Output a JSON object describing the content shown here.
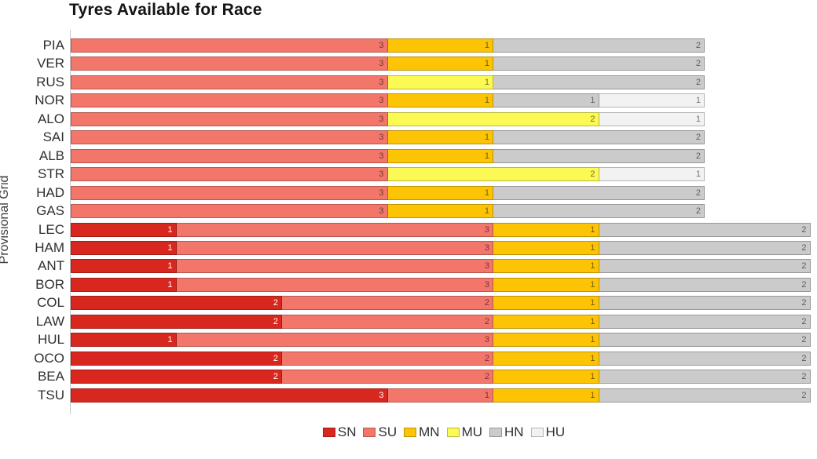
{
  "chart_data": {
    "type": "bar",
    "orientation": "horizontal",
    "stacked": true,
    "title": "Tyres Available for Race",
    "xlabel": "",
    "ylabel": "Provisional Grid",
    "xlim": [
      0,
      7.06
    ],
    "grid": false,
    "legend_position": "bottom-center",
    "legend": [
      "SN",
      "SU",
      "MN",
      "MU",
      "HN",
      "HU"
    ],
    "colors": {
      "SN": "#d8271f",
      "SU": "#f3766b",
      "MN": "#fcc404",
      "MU": "#fbf954",
      "HN": "#cbcbcb",
      "HU": "#f2f2f2"
    },
    "categories": [
      "PIA",
      "VER",
      "RUS",
      "NOR",
      "ALO",
      "SAI",
      "ALB",
      "STR",
      "HAD",
      "GAS",
      "LEC",
      "HAM",
      "ANT",
      "BOR",
      "COL",
      "LAW",
      "HUL",
      "OCO",
      "BEA",
      "TSU"
    ],
    "rows": [
      {
        "driver": "PIA",
        "segments": [
          {
            "compound": "SU",
            "value": 3
          },
          {
            "compound": "MN",
            "value": 1
          },
          {
            "compound": "HN",
            "value": 2
          }
        ]
      },
      {
        "driver": "VER",
        "segments": [
          {
            "compound": "SU",
            "value": 3
          },
          {
            "compound": "MN",
            "value": 1
          },
          {
            "compound": "HN",
            "value": 2
          }
        ]
      },
      {
        "driver": "RUS",
        "segments": [
          {
            "compound": "SU",
            "value": 3
          },
          {
            "compound": "MU",
            "value": 1
          },
          {
            "compound": "HN",
            "value": 2
          }
        ]
      },
      {
        "driver": "NOR",
        "segments": [
          {
            "compound": "SU",
            "value": 3
          },
          {
            "compound": "MN",
            "value": 1
          },
          {
            "compound": "HN",
            "value": 1
          },
          {
            "compound": "HU",
            "value": 1
          }
        ]
      },
      {
        "driver": "ALO",
        "segments": [
          {
            "compound": "SU",
            "value": 3
          },
          {
            "compound": "MU",
            "value": 2
          },
          {
            "compound": "HU",
            "value": 1
          }
        ]
      },
      {
        "driver": "SAI",
        "segments": [
          {
            "compound": "SU",
            "value": 3
          },
          {
            "compound": "MN",
            "value": 1
          },
          {
            "compound": "HN",
            "value": 2
          }
        ]
      },
      {
        "driver": "ALB",
        "segments": [
          {
            "compound": "SU",
            "value": 3
          },
          {
            "compound": "MN",
            "value": 1
          },
          {
            "compound": "HN",
            "value": 2
          }
        ]
      },
      {
        "driver": "STR",
        "segments": [
          {
            "compound": "SU",
            "value": 3
          },
          {
            "compound": "MU",
            "value": 2
          },
          {
            "compound": "HU",
            "value": 1
          }
        ]
      },
      {
        "driver": "HAD",
        "segments": [
          {
            "compound": "SU",
            "value": 3
          },
          {
            "compound": "MN",
            "value": 1
          },
          {
            "compound": "HN",
            "value": 2
          }
        ]
      },
      {
        "driver": "GAS",
        "segments": [
          {
            "compound": "SU",
            "value": 3
          },
          {
            "compound": "MN",
            "value": 1
          },
          {
            "compound": "HN",
            "value": 2
          }
        ]
      },
      {
        "driver": "LEC",
        "segments": [
          {
            "compound": "SN",
            "value": 1
          },
          {
            "compound": "SU",
            "value": 3
          },
          {
            "compound": "MN",
            "value": 1
          },
          {
            "compound": "HN",
            "value": 2
          }
        ]
      },
      {
        "driver": "HAM",
        "segments": [
          {
            "compound": "SN",
            "value": 1
          },
          {
            "compound": "SU",
            "value": 3
          },
          {
            "compound": "MN",
            "value": 1
          },
          {
            "compound": "HN",
            "value": 2
          }
        ]
      },
      {
        "driver": "ANT",
        "segments": [
          {
            "compound": "SN",
            "value": 1
          },
          {
            "compound": "SU",
            "value": 3
          },
          {
            "compound": "MN",
            "value": 1
          },
          {
            "compound": "HN",
            "value": 2
          }
        ]
      },
      {
        "driver": "BOR",
        "segments": [
          {
            "compound": "SN",
            "value": 1
          },
          {
            "compound": "SU",
            "value": 3
          },
          {
            "compound": "MN",
            "value": 1
          },
          {
            "compound": "HN",
            "value": 2
          }
        ]
      },
      {
        "driver": "COL",
        "segments": [
          {
            "compound": "SN",
            "value": 2
          },
          {
            "compound": "SU",
            "value": 2
          },
          {
            "compound": "MN",
            "value": 1
          },
          {
            "compound": "HN",
            "value": 2
          }
        ]
      },
      {
        "driver": "LAW",
        "segments": [
          {
            "compound": "SN",
            "value": 2
          },
          {
            "compound": "SU",
            "value": 2
          },
          {
            "compound": "MN",
            "value": 1
          },
          {
            "compound": "HN",
            "value": 2
          }
        ]
      },
      {
        "driver": "HUL",
        "segments": [
          {
            "compound": "SN",
            "value": 1
          },
          {
            "compound": "SU",
            "value": 3
          },
          {
            "compound": "MN",
            "value": 1
          },
          {
            "compound": "HN",
            "value": 2
          }
        ]
      },
      {
        "driver": "OCO",
        "segments": [
          {
            "compound": "SN",
            "value": 2
          },
          {
            "compound": "SU",
            "value": 2
          },
          {
            "compound": "MN",
            "value": 1
          },
          {
            "compound": "HN",
            "value": 2
          }
        ]
      },
      {
        "driver": "BEA",
        "segments": [
          {
            "compound": "SN",
            "value": 2
          },
          {
            "compound": "SU",
            "value": 2
          },
          {
            "compound": "MN",
            "value": 1
          },
          {
            "compound": "HN",
            "value": 2
          }
        ]
      },
      {
        "driver": "TSU",
        "segments": [
          {
            "compound": "SN",
            "value": 3
          },
          {
            "compound": "SU",
            "value": 1
          },
          {
            "compound": "MN",
            "value": 1
          },
          {
            "compound": "HN",
            "value": 2
          }
        ]
      }
    ]
  }
}
